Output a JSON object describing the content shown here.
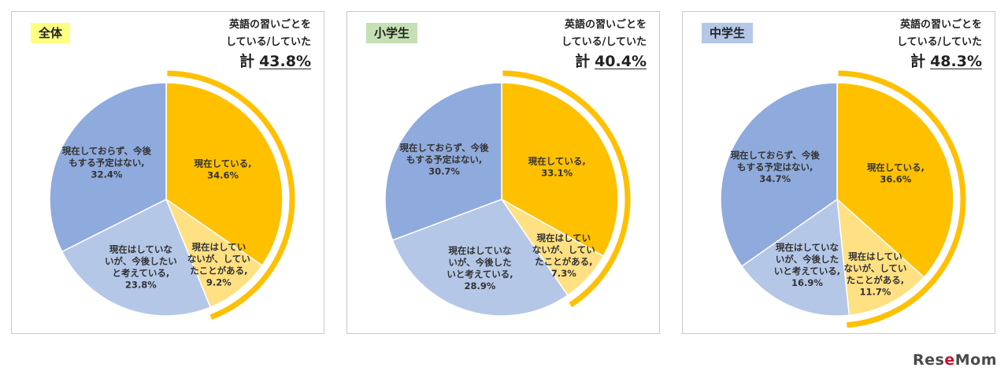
{
  "header_title_line1": "英語の習いごとを",
  "header_title_line2": "している/していた",
  "total_label": "計",
  "colors": {
    "current": "#ffc000",
    "past": "#ffe083",
    "future": "#b4c7e7",
    "no_plan": "#8faadc",
    "arc": "#ffc000"
  },
  "chart_data": [
    {
      "type": "pie",
      "title": "全体",
      "badge_color": "#ffff80",
      "total": "43.8%",
      "slices": [
        {
          "label": [
            "現在している,",
            "34.6%"
          ],
          "value": 34.6,
          "color_key": "current"
        },
        {
          "label": [
            "現在はしてい",
            "ないが、してい",
            "たことがある,",
            "9.2%"
          ],
          "value": 9.2,
          "color_key": "past"
        },
        {
          "label": [
            "現在はしていな",
            "いが、今後したい",
            "と考えている,",
            "23.8%"
          ],
          "value": 23.8,
          "color_key": "future"
        },
        {
          "label": [
            "現在しておらず、今後",
            "もする予定はない,",
            "32.4%"
          ],
          "value": 32.4,
          "color_key": "no_plan"
        }
      ]
    },
    {
      "type": "pie",
      "title": "小学生",
      "badge_color": "#c5e0b4",
      "total": "40.4%",
      "slices": [
        {
          "label": [
            "現在している,",
            "33.1%"
          ],
          "value": 33.1,
          "color_key": "current"
        },
        {
          "label": [
            "現在はしてい",
            "ないが、してい",
            "たことがある,",
            "7.3%"
          ],
          "value": 7.3,
          "color_key": "past"
        },
        {
          "label": [
            "現在はしていな",
            "いが、今後した",
            "いと考えている,",
            "28.9%"
          ],
          "value": 28.9,
          "color_key": "future"
        },
        {
          "label": [
            "現在しておらず、今後",
            "もする予定はない,",
            "30.7%"
          ],
          "value": 30.7,
          "color_key": "no_plan"
        }
      ]
    },
    {
      "type": "pie",
      "title": "中学生",
      "badge_color": "#b4c7e7",
      "total": "48.3%",
      "slices": [
        {
          "label": [
            "現在している,",
            "36.6%"
          ],
          "value": 36.6,
          "color_key": "current"
        },
        {
          "label": [
            "現在はしてい",
            "ないが、してい",
            "たことがある,",
            "11.7%"
          ],
          "value": 11.7,
          "color_key": "past"
        },
        {
          "label": [
            "現在はしていな",
            "いが、今後した",
            "いと考えている,",
            "16.9%"
          ],
          "value": 16.9,
          "color_key": "future"
        },
        {
          "label": [
            "現在しておらず、今後",
            "もする予定はない,",
            "34.7%"
          ],
          "value": 34.7,
          "color_key": "no_plan"
        }
      ]
    }
  ],
  "logo": {
    "part1": "Res",
    "part2": "e",
    "part3": "Mom"
  }
}
